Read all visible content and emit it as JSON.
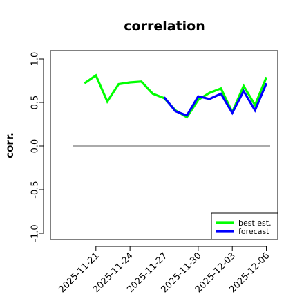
{
  "chart_data": {
    "type": "line",
    "title": "correlation",
    "xlabel": "",
    "ylabel": "corr.",
    "ylim": [
      -1.0,
      1.0
    ],
    "yticks": [
      "-1.0",
      "-0.5",
      "0.0",
      "0.5",
      "1.0"
    ],
    "ytick_values": [
      -1.0,
      -0.5,
      0.0,
      0.5,
      1.0
    ],
    "x": [
      "2025-11-20",
      "2025-11-21",
      "2025-11-22",
      "2025-11-23",
      "2025-11-24",
      "2025-11-25",
      "2025-11-26",
      "2025-11-27",
      "2025-11-28",
      "2025-11-29",
      "2025-11-30",
      "2025-12-01",
      "2025-12-02",
      "2025-12-03",
      "2025-12-04",
      "2025-12-05",
      "2025-12-06"
    ],
    "xlim": [
      "2025-11-17",
      "2025-12-07"
    ],
    "xticks": [
      {
        "label": "2025-11-21",
        "date": "2025-11-21",
        "color": "#000000"
      },
      {
        "label": "2025-11-24",
        "date": "2025-11-24",
        "color": "#000000"
      },
      {
        "label": "2025-11-27",
        "date": "2025-11-27",
        "color": "#008000"
      },
      {
        "label": "2025-11-30",
        "date": "2025-11-30",
        "color": "#000000"
      },
      {
        "label": "2025-12-03",
        "date": "2025-12-03",
        "color": "#000000"
      },
      {
        "label": "2025-12-06",
        "date": "2025-12-06",
        "color": "#000000"
      }
    ],
    "hline": 0.0,
    "series": [
      {
        "name": "best est.",
        "color": "#00ff00",
        "values": [
          0.72,
          0.81,
          0.51,
          0.71,
          0.73,
          0.74,
          0.6,
          0.55,
          0.41,
          0.33,
          0.53,
          0.61,
          0.66,
          0.39,
          0.69,
          0.47,
          0.79
        ]
      },
      {
        "name": "forecast",
        "color": "#0000ff",
        "values": [
          null,
          null,
          null,
          null,
          null,
          null,
          null,
          0.56,
          0.4,
          0.35,
          0.57,
          0.54,
          0.6,
          0.38,
          0.63,
          0.41,
          0.72
        ]
      }
    ],
    "legend": {
      "position": "bottom-right",
      "labels": [
        "best est.",
        "forecast"
      ]
    },
    "grid": false
  }
}
